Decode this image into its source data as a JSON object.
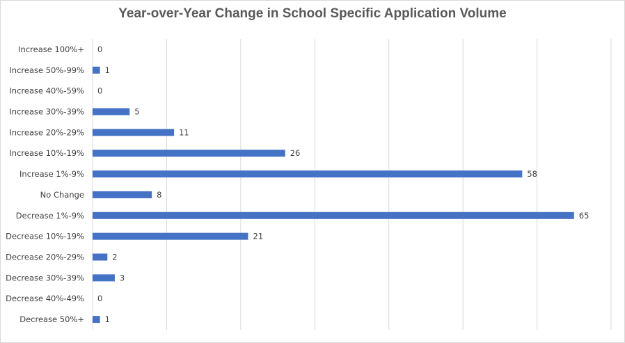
{
  "chart_data": {
    "type": "bar",
    "orientation": "horizontal",
    "title": "Year-over-Year Change in School Specific Application Volume",
    "xlabel": "",
    "ylabel": "",
    "xlim": [
      0,
      70
    ],
    "grid": true,
    "legend": "none",
    "bar_color": "#4472C4",
    "categories": [
      "Increase 100%+",
      "Increase 50%-99%",
      "Increase 40%-59%",
      "Increase 30%-39%",
      "Increase 20%-29%",
      "Increase 10%-19%",
      "Increase 1%-9%",
      "No Change",
      "Decrease 1%-9%",
      "Decrease 10%-19%",
      "Decrease 20%-29%",
      "Decrease 30%-39%",
      "Decrease 40%-49%",
      "Decrease 50%+"
    ],
    "values": [
      0,
      1,
      0,
      5,
      11,
      26,
      58,
      8,
      65,
      21,
      2,
      3,
      0,
      1
    ]
  }
}
